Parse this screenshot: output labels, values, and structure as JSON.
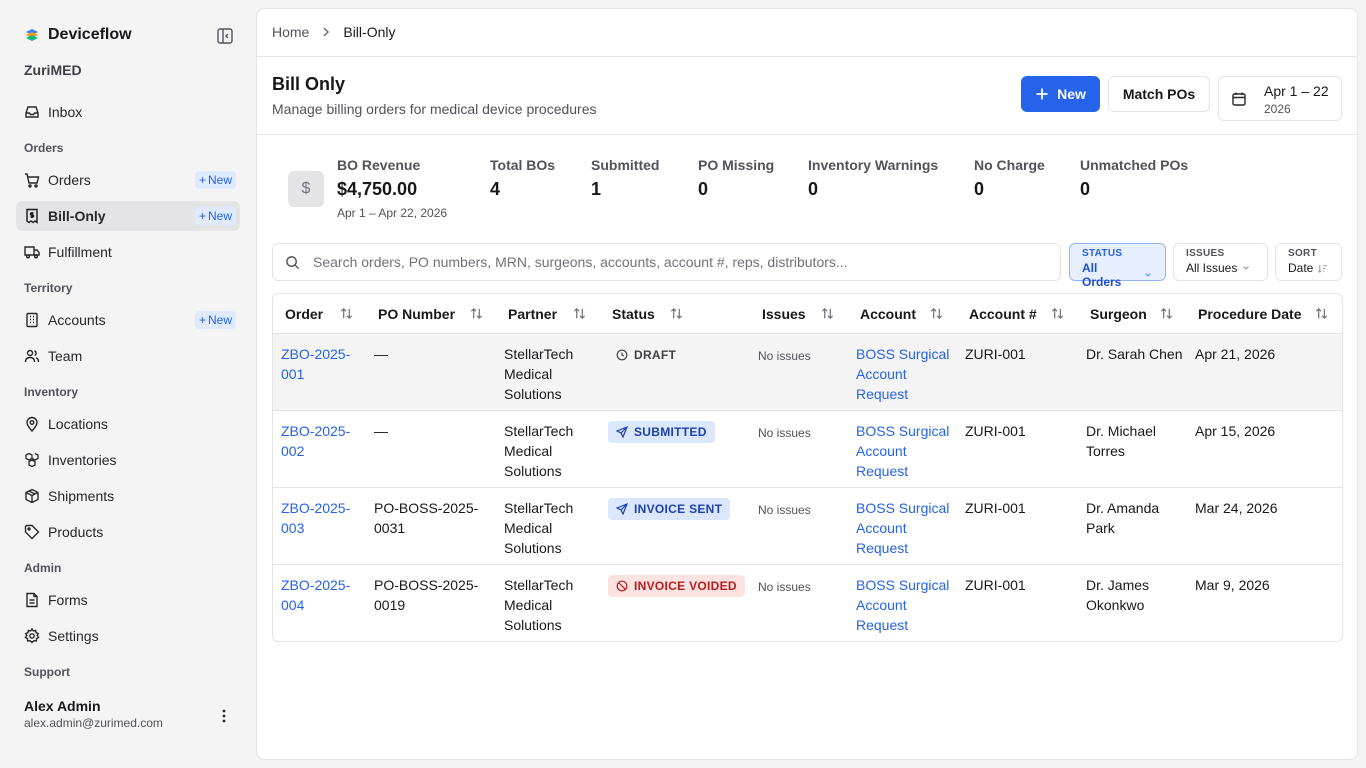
{
  "app": {
    "name": "Deviceflow",
    "org": "ZuriMED"
  },
  "sidebar": {
    "inbox": "Inbox",
    "sections": {
      "orders": "Orders",
      "territory": "Territory",
      "inventory": "Inventory",
      "admin": "Admin",
      "support": "Support"
    },
    "items": {
      "orders": "Orders",
      "bill_only": "Bill-Only",
      "fulfillment": "Fulfillment",
      "accounts": "Accounts",
      "team": "Team",
      "locations": "Locations",
      "inventories": "Inventories",
      "shipments": "Shipments",
      "products": "Products",
      "forms": "Forms",
      "settings": "Settings"
    },
    "new_badge": "New"
  },
  "user": {
    "name": "Alex Admin",
    "email": "alex.admin@zurimed.com"
  },
  "breadcrumb": {
    "home": "Home",
    "current": "Bill-Only"
  },
  "header": {
    "title": "Bill Only",
    "subtitle": "Manage billing orders for medical device procedures",
    "new_label": "New",
    "match_label": "Match POs",
    "date_range": "Apr 1 – 22",
    "date_year": "2026"
  },
  "stats": {
    "revenue": {
      "label": "BO Revenue",
      "value": "$4,750.00",
      "sub": "Apr 1 – Apr 22, 2026",
      "icon": "$"
    },
    "total": {
      "label": "Total BOs",
      "value": "4"
    },
    "submitted": {
      "label": "Submitted",
      "value": "1"
    },
    "po_missing": {
      "label": "PO Missing",
      "value": "0"
    },
    "inv_warn": {
      "label": "Inventory Warnings",
      "value": "0"
    },
    "no_charge": {
      "label": "No Charge",
      "value": "0"
    },
    "unmatched": {
      "label": "Unmatched POs",
      "value": "0"
    }
  },
  "search": {
    "placeholder": "Search orders, PO numbers, MRN, surgeons, accounts, account #, reps, distributors..."
  },
  "filters": {
    "status": {
      "label": "STATUS",
      "value": "All Orders"
    },
    "issues": {
      "label": "ISSUES",
      "value": "All Issues"
    },
    "sort": {
      "label": "SORT",
      "value": "Date"
    }
  },
  "table": {
    "columns": {
      "order": "Order",
      "po": "PO Number",
      "partner": "Partner",
      "status": "Status",
      "issues": "Issues",
      "account": "Account",
      "account_no": "Account #",
      "surgeon": "Surgeon",
      "procedure_date": "Procedure Date"
    },
    "rows": [
      {
        "order": "ZBO-2025-\n001",
        "po": "—",
        "partner": "StellarTech\nMedical\nSolutions",
        "status": "DRAFT",
        "issues": "No issues",
        "account": "BOSS Surgical\nAccount\nRequest",
        "account_no": "ZURI-001",
        "surgeon": "Dr. Sarah Chen",
        "date": "Apr 21, 2026"
      },
      {
        "order": "ZBO-2025-\n002",
        "po": "—",
        "partner": "StellarTech\nMedical\nSolutions",
        "status": "SUBMITTED",
        "issues": "No issues",
        "account": "BOSS Surgical\nAccount\nRequest",
        "account_no": "ZURI-001",
        "surgeon": "Dr. Michael\nTorres",
        "date": "Apr 15, 2026"
      },
      {
        "order": "ZBO-2025-\n003",
        "po": "PO-BOSS-2025-\n0031",
        "partner": "StellarTech\nMedical\nSolutions",
        "status": "INVOICE SENT",
        "issues": "No issues",
        "account": "BOSS Surgical\nAccount\nRequest",
        "account_no": "ZURI-001",
        "surgeon": "Dr. Amanda\nPark",
        "date": "Mar 24, 2026"
      },
      {
        "order": "ZBO-2025-\n004",
        "po": "PO-BOSS-2025-\n0019",
        "partner": "StellarTech\nMedical\nSolutions",
        "status": "INVOICE VOIDED",
        "issues": "No issues",
        "account": "BOSS Surgical\nAccount\nRequest",
        "account_no": "ZURI-001",
        "surgeon": "Dr. James\nOkonkwo",
        "date": "Mar 9, 2026"
      }
    ]
  },
  "colors": {
    "accent": "#2563eb",
    "active_nav": "#e4e4e7",
    "void": "#b91c1c"
  }
}
